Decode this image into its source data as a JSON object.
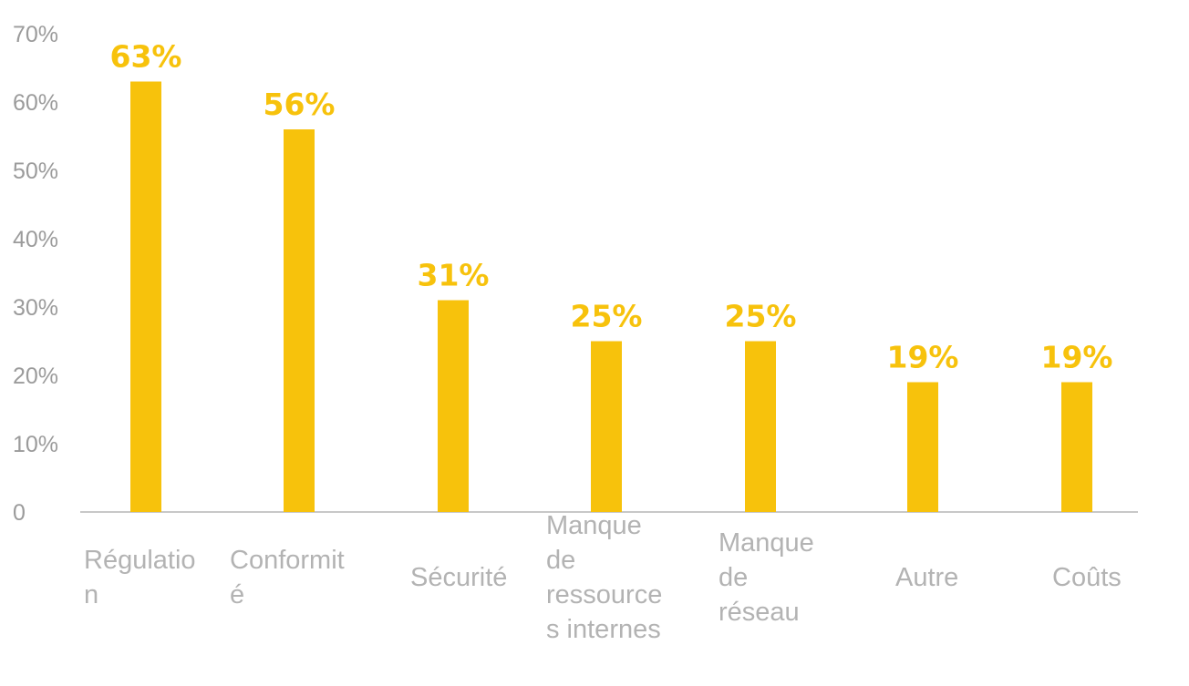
{
  "chart_data": {
    "type": "bar",
    "categories": [
      [
        "Régulatio",
        "n"
      ],
      [
        "Conformit",
        "é"
      ],
      [
        "Sécurité"
      ],
      [
        "Manque",
        "de",
        "ressource",
        "s internes"
      ],
      [
        "Manque",
        "de",
        "réseau"
      ],
      [
        "Autre"
      ],
      [
        "Coûts"
      ]
    ],
    "values": [
      63,
      56,
      31,
      25,
      25,
      19,
      19
    ],
    "value_labels": [
      "63%",
      "56%",
      "31%",
      "25%",
      "25%",
      "19%",
      "19%"
    ],
    "y_ticks": [
      {
        "value": 0,
        "label": "0"
      },
      {
        "value": 10,
        "label": "10%"
      },
      {
        "value": 20,
        "label": "20%"
      },
      {
        "value": 30,
        "label": "30%"
      },
      {
        "value": 40,
        "label": "40%"
      },
      {
        "value": 50,
        "label": "50%"
      },
      {
        "value": 60,
        "label": "60%"
      },
      {
        "value": 70,
        "label": "70%"
      }
    ],
    "ylim": [
      0,
      70
    ],
    "title": "",
    "xlabel": "",
    "ylabel": "",
    "grid": false,
    "legend": "none",
    "colors": {
      "bar": "#F7C20C",
      "value_label": "#F7C20C",
      "axis": "#c8c8c8",
      "tick_text": "#9b9b9b",
      "category_text": "#b3b3b3"
    }
  }
}
